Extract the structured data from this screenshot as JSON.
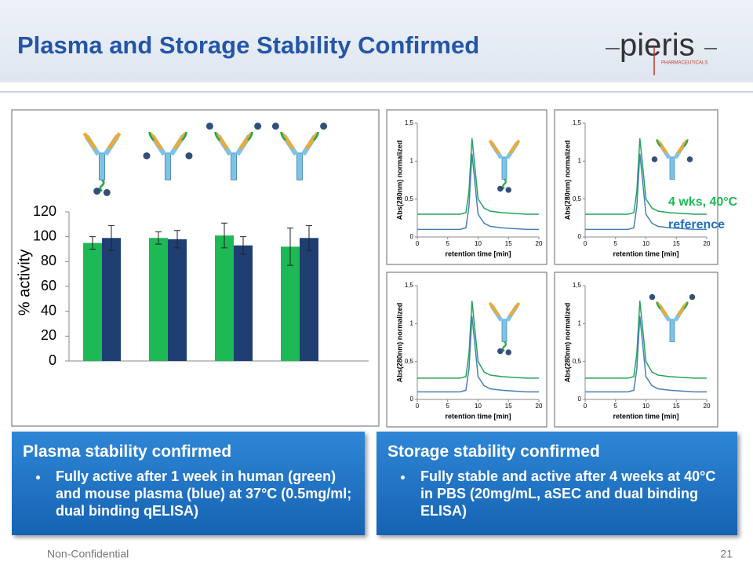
{
  "slide": {
    "title": "Plasma and Storage Stability Confirmed",
    "logo": {
      "name": "pieris",
      "subtitle": "PHARMACEUTICALS"
    },
    "boxes": [
      {
        "heading": "Plasma stability confirmed",
        "bullets": [
          "Fully active after 1 week in human (green) and mouse plasma (blue) at 37°C (0.5mg/ml; dual binding qELISA)"
        ]
      },
      {
        "heading": "Storage stability confirmed",
        "bullets": [
          "Fully stable and active after 4 weeks at 40°C in PBS (20mg/mL, aSEC and dual binding ELISA)"
        ]
      }
    ],
    "footer": {
      "left": "Non-Confidential",
      "page": "21"
    }
  },
  "chart_data": [
    {
      "type": "bar",
      "ylabel": "% activity",
      "categories": [
        null,
        null,
        null,
        null
      ],
      "series": [
        {
          "color": "#1db954",
          "values": [
            95,
            99,
            101,
            92
          ],
          "errors": [
            5,
            5,
            10,
            15
          ]
        },
        {
          "color": "#1f3f73",
          "values": [
            99,
            98,
            93,
            99
          ],
          "errors": [
            10,
            7,
            7,
            10
          ]
        }
      ],
      "ylim": [
        0,
        120
      ],
      "yticks": [
        0,
        20,
        40,
        60,
        80,
        100,
        120
      ]
    },
    {
      "type": "line",
      "xlabel": "retention time [min]",
      "ylabel": "Abs(280nm) normalized",
      "x": [
        0,
        2,
        4,
        6,
        7,
        8,
        8.5,
        9,
        9.5,
        10,
        11,
        12,
        14,
        16,
        18,
        20
      ],
      "series": [
        {
          "color": "#22a35a",
          "values": [
            0.3,
            0.3,
            0.3,
            0.3,
            0.3,
            0.32,
            0.6,
            1.3,
            0.9,
            0.5,
            0.38,
            0.34,
            0.32,
            0.31,
            0.3,
            0.3
          ]
        },
        {
          "color": "#4a7fb5",
          "values": [
            0.1,
            0.1,
            0.1,
            0.1,
            0.1,
            0.12,
            0.4,
            1.1,
            0.7,
            0.3,
            0.18,
            0.14,
            0.12,
            0.11,
            0.1,
            0.1
          ]
        }
      ],
      "xlim": [
        0,
        20
      ],
      "xticks": [
        0,
        5,
        10,
        15,
        20
      ],
      "ylim": [
        0,
        1.5
      ],
      "yticks": [
        0,
        {
          "value": 0.5,
          "label": "0,5"
        },
        1,
        {
          "value": 1.5,
          "label": "1,5"
        }
      ]
    },
    {
      "type": "line",
      "xlabel": "retention time [min]",
      "ylabel": "Abs(280nm) normalized",
      "x": [
        0,
        2,
        4,
        6,
        7,
        8,
        8.5,
        9,
        9.5,
        10,
        11,
        12,
        14,
        16,
        18,
        20
      ],
      "series": [
        {
          "name": "4 wks, 40°C",
          "color": "#22a35a",
          "values": [
            0.3,
            0.3,
            0.3,
            0.3,
            0.3,
            0.32,
            0.6,
            1.3,
            0.9,
            0.5,
            0.38,
            0.34,
            0.32,
            0.31,
            0.3,
            0.3
          ]
        },
        {
          "name": "reference",
          "color": "#4a7fb5",
          "values": [
            0.1,
            0.1,
            0.1,
            0.1,
            0.1,
            0.12,
            0.4,
            1.1,
            0.7,
            0.3,
            0.18,
            0.14,
            0.12,
            0.11,
            0.1,
            0.1
          ]
        }
      ],
      "xlim": [
        0,
        20
      ],
      "xticks": [
        0,
        5,
        10,
        15,
        20
      ],
      "ylim": [
        0,
        1.5
      ],
      "yticks": [
        0,
        {
          "value": 0.5,
          "label": "0,5"
        },
        1,
        {
          "value": 1.5,
          "label": "1,5"
        }
      ]
    },
    {
      "type": "line",
      "xlabel": "retention time [min]",
      "ylabel": "Abs(280nm) normalized",
      "x": [
        0,
        2,
        4,
        6,
        7,
        8,
        8.5,
        9,
        9.5,
        10,
        11,
        12,
        14,
        16,
        18,
        20
      ],
      "series": [
        {
          "color": "#22a35a",
          "values": [
            0.28,
            0.28,
            0.28,
            0.28,
            0.28,
            0.3,
            0.6,
            1.3,
            0.9,
            0.5,
            0.36,
            0.32,
            0.3,
            0.29,
            0.28,
            0.28
          ]
        },
        {
          "color": "#4a7fb5",
          "values": [
            0.1,
            0.1,
            0.1,
            0.1,
            0.1,
            0.12,
            0.4,
            1.1,
            0.7,
            0.3,
            0.18,
            0.14,
            0.12,
            0.11,
            0.1,
            0.1
          ]
        }
      ],
      "xlim": [
        0,
        20
      ],
      "xticks": [
        0,
        5,
        10,
        15,
        20
      ],
      "ylim": [
        0,
        1.5
      ],
      "yticks": [
        0,
        {
          "value": 0.5,
          "label": "0,5"
        },
        1,
        {
          "value": 1.5,
          "label": "1,5"
        }
      ]
    },
    {
      "type": "line",
      "xlabel": "retention time [min]",
      "ylabel": "Abs(280nm) normalized",
      "x": [
        0,
        2,
        4,
        6,
        7,
        8,
        8.5,
        9,
        9.5,
        10,
        11,
        12,
        14,
        16,
        18,
        20
      ],
      "series": [
        {
          "color": "#22a35a",
          "values": [
            0.28,
            0.28,
            0.28,
            0.28,
            0.28,
            0.3,
            0.6,
            1.3,
            0.9,
            0.5,
            0.36,
            0.32,
            0.3,
            0.29,
            0.28,
            0.28
          ]
        },
        {
          "color": "#4a7fb5",
          "values": [
            0.1,
            0.1,
            0.1,
            0.1,
            0.1,
            0.12,
            0.4,
            1.1,
            0.7,
            0.3,
            0.18,
            0.14,
            0.12,
            0.11,
            0.1,
            0.1
          ]
        }
      ],
      "xlim": [
        0,
        20
      ],
      "xticks": [
        0,
        5,
        10,
        15,
        20
      ],
      "ylim": [
        0,
        1.5
      ],
      "yticks": [
        0,
        {
          "value": 0.5,
          "label": "0,5"
        },
        1,
        {
          "value": 1.5,
          "label": "1,5"
        }
      ]
    }
  ]
}
